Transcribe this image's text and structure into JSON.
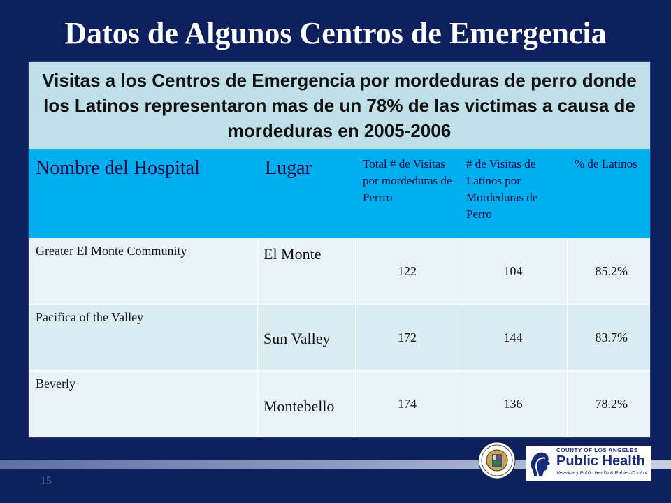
{
  "slide": {
    "title": "Datos de Algunos Centros de Emergencia",
    "page_number": "15"
  },
  "table": {
    "caption": "Visitas a los Centros de Emergencia por mordeduras de perro donde los Latinos representaron mas de un 78% de las victimas a causa de mordeduras en 2005-2006",
    "headers": {
      "hospital": "Nombre del Hospital",
      "location": "Lugar",
      "total_visits": "Total # de Visitas por mordeduras de Perrro",
      "latino_visits": "# de Visitas de Latinos por Mordeduras de Perro",
      "pct_latinos": "% de Latinos"
    },
    "rows": [
      {
        "hospital": "Greater El Monte Community",
        "location": "El Monte",
        "total": "122",
        "latinos": "104",
        "pct": "85.2%"
      },
      {
        "hospital": "Pacifica of the Valley",
        "location": "Sun Valley",
        "total": "172",
        "latinos": "144",
        "pct": "83.7%"
      },
      {
        "hospital": "Beverly",
        "location": "Montebello",
        "total": "174",
        "latinos": "136",
        "pct": "78.2%"
      }
    ]
  },
  "logos": {
    "seal_icon": "county-seal-icon",
    "public_health": {
      "line1": "COUNTY OF LOS ANGELES",
      "line2": "Public Health",
      "line3": "Veterinary Public Health & Rabies Control"
    }
  },
  "colors": {
    "background": "#0d1f5c",
    "caption_bg": "#bfe0e9",
    "header_bg": "#00aeef",
    "row_bg": "#e8f3f8"
  }
}
